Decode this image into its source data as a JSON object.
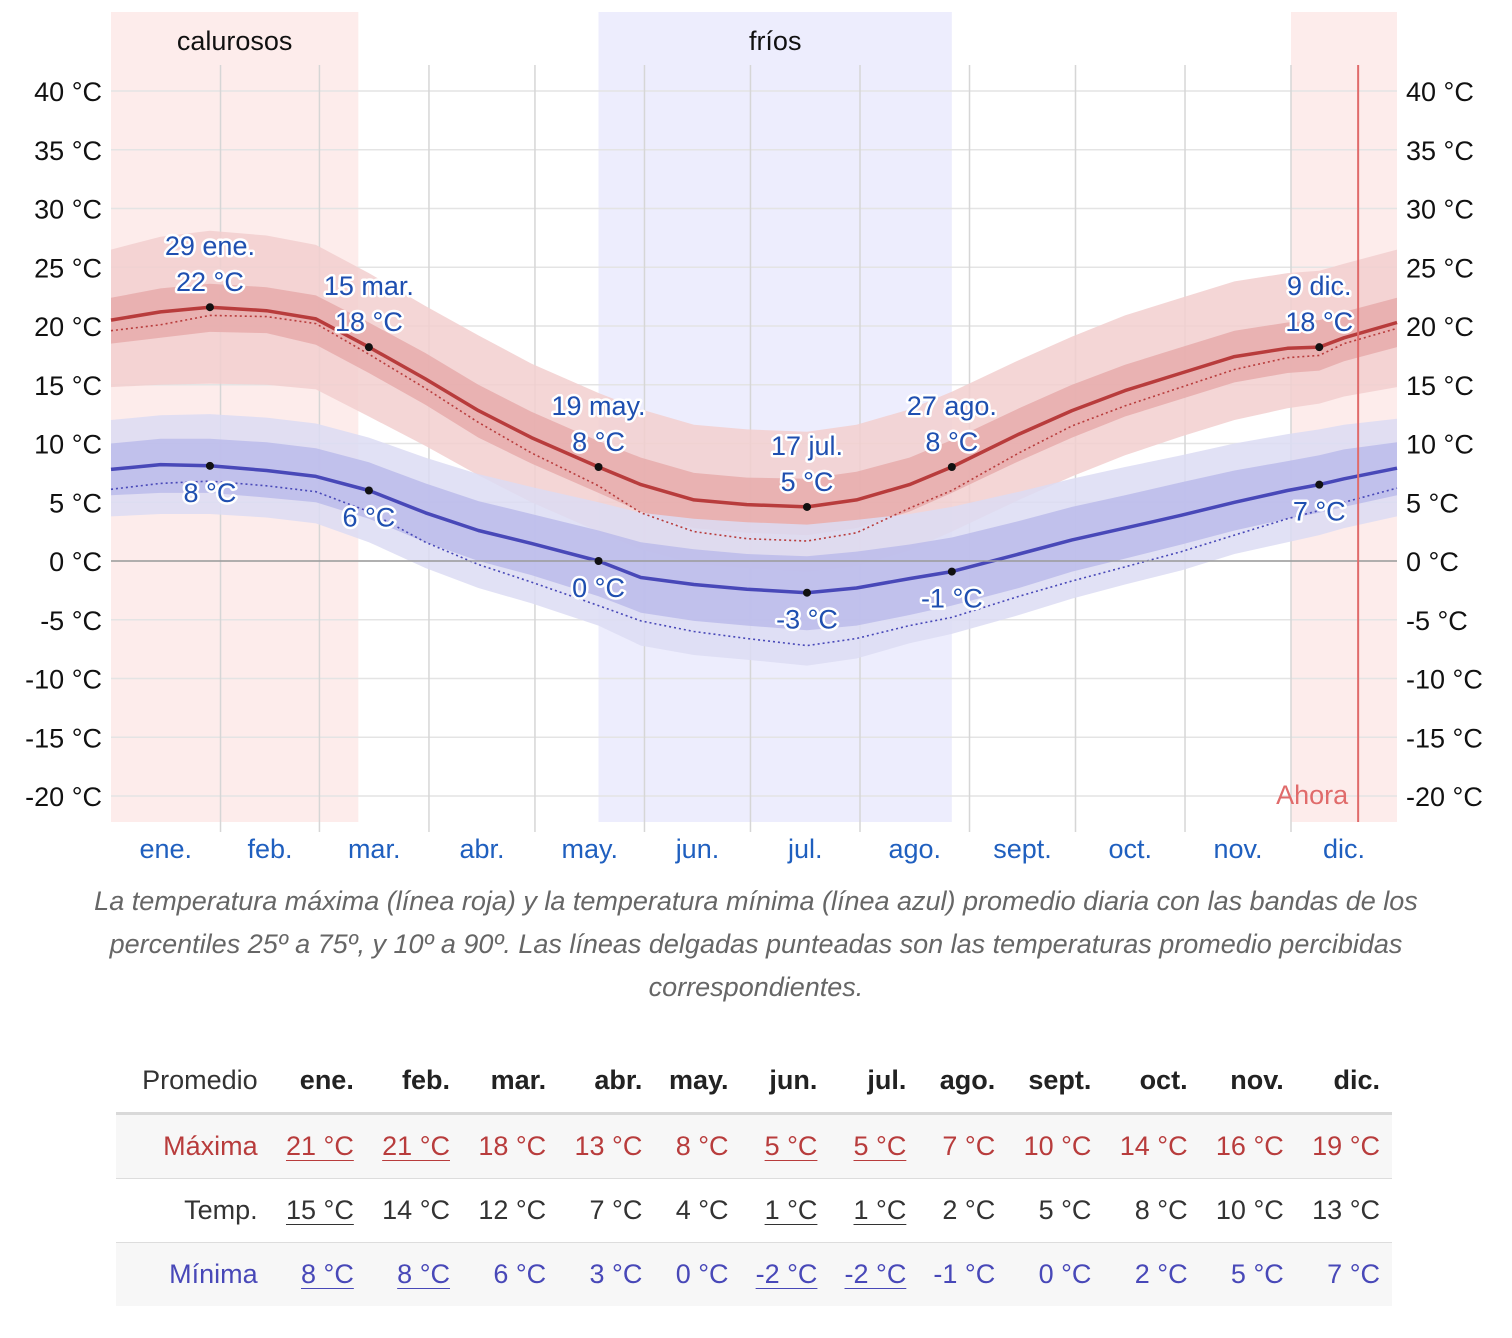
{
  "chart_data": {
    "type": "line",
    "y_unit_label": "°C",
    "ylim": [
      -22,
      43
    ],
    "y_ticks": [
      40,
      35,
      30,
      25,
      20,
      15,
      10,
      5,
      0,
      -5,
      -10,
      -15,
      -20
    ],
    "y_tick_labels": [
      "40 °C",
      "35 °C",
      "30 °C",
      "25 °C",
      "20 °C",
      "15 °C",
      "10 °C",
      "5 °C",
      "0 °C",
      "-5 °C",
      "-10 °C",
      "-15 °C",
      "-20 °C"
    ],
    "month_labels": [
      "ene.",
      "feb.",
      "mar.",
      "abr.",
      "may.",
      "jun.",
      "jul.",
      "ago.",
      "sept.",
      "oct.",
      "nov.",
      "dic."
    ],
    "x_range_days": [
      1,
      365
    ],
    "grid": true,
    "seasons": [
      {
        "label": "calurosos",
        "color": "#fdeceb",
        "ranges": [
          [
            1,
            71
          ],
          [
            335,
            365
          ]
        ]
      },
      {
        "label": "fríos",
        "color": "#ededfd",
        "ranges": [
          [
            139,
            239
          ]
        ]
      }
    ],
    "now": {
      "label": "Ahora",
      "day": 354,
      "color": "#e06b6b"
    },
    "series": [
      {
        "name": "Máxima",
        "color": "#b83c3c",
        "band_outer_color": "#f2cfcf",
        "band_inner_color": "#e6a9a9",
        "x_day": [
          1,
          15,
          29,
          45,
          59,
          74,
          90,
          105,
          120,
          139,
          151,
          166,
          181,
          198,
          212,
          227,
          239,
          258,
          273,
          288,
          304,
          319,
          334,
          343,
          350,
          365
        ],
        "values": [
          20.5,
          21.2,
          21.6,
          21.3,
          20.6,
          18.2,
          15.5,
          12.8,
          10.5,
          8.0,
          6.5,
          5.2,
          4.8,
          4.6,
          5.2,
          6.5,
          8.0,
          10.8,
          12.8,
          14.5,
          16.0,
          17.4,
          18.1,
          18.2,
          19.0,
          20.3
        ],
        "p25": [
          18.5,
          19.0,
          19.5,
          19.4,
          18.4,
          16.0,
          13.3,
          10.5,
          8.3,
          5.8,
          4.2,
          2.8,
          2.4,
          2.2,
          2.8,
          4.2,
          5.8,
          8.5,
          10.5,
          12.3,
          13.8,
          15.2,
          16.0,
          16.2,
          17.0,
          18.2
        ],
        "p75": [
          22.4,
          23.2,
          23.6,
          23.3,
          22.6,
          20.3,
          17.7,
          15.0,
          12.7,
          10.2,
          8.8,
          7.5,
          7.1,
          7.0,
          7.6,
          8.8,
          10.3,
          13.0,
          15.0,
          16.7,
          18.2,
          19.6,
          20.3,
          20.5,
          21.2,
          22.4
        ],
        "p10": [
          14.8,
          15.0,
          15.1,
          15.0,
          14.6,
          12.3,
          9.8,
          7.3,
          5.0,
          2.5,
          1.0,
          -0.2,
          -0.6,
          -0.9,
          -0.4,
          0.9,
          2.5,
          5.2,
          7.2,
          9.0,
          10.6,
          12.0,
          13.0,
          13.4,
          14.0,
          14.8
        ],
        "p90": [
          26.5,
          27.6,
          28.1,
          27.7,
          26.9,
          24.5,
          21.7,
          19.2,
          16.8,
          14.3,
          12.9,
          11.6,
          11.2,
          11.0,
          11.6,
          12.9,
          14.4,
          17.1,
          19.1,
          20.9,
          22.4,
          23.8,
          24.5,
          24.7,
          25.3,
          26.5
        ],
        "feels_like": [
          19.6,
          20.1,
          20.9,
          20.8,
          20.2,
          17.6,
          14.7,
          11.8,
          9.2,
          6.4,
          4.1,
          2.5,
          1.9,
          1.7,
          2.4,
          4.5,
          6.0,
          9.2,
          11.5,
          13.2,
          14.8,
          16.3,
          17.3,
          17.5,
          18.5,
          19.8
        ]
      },
      {
        "name": "Mínima",
        "color": "#4848b8",
        "band_outer_color": "#dcdcf3",
        "band_inner_color": "#b9b9ea",
        "x_day": [
          1,
          15,
          29,
          45,
          59,
          74,
          90,
          105,
          120,
          139,
          151,
          166,
          181,
          198,
          212,
          227,
          239,
          258,
          273,
          288,
          304,
          319,
          334,
          343,
          350,
          365
        ],
        "values": [
          7.8,
          8.2,
          8.1,
          7.7,
          7.2,
          6.0,
          4.1,
          2.6,
          1.5,
          0.0,
          -1.4,
          -2.0,
          -2.4,
          -2.7,
          -2.3,
          -1.5,
          -0.9,
          0.6,
          1.8,
          2.8,
          3.9,
          5.0,
          6.0,
          6.5,
          7.0,
          7.9
        ],
        "p25": [
          5.6,
          5.8,
          5.8,
          5.4,
          5.0,
          3.6,
          1.6,
          0.0,
          -1.2,
          -3.0,
          -4.4,
          -5.1,
          -5.5,
          -5.9,
          -5.5,
          -4.6,
          -3.8,
          -2.3,
          -0.9,
          0.2,
          1.4,
          2.6,
          3.6,
          4.1,
          4.6,
          5.6
        ],
        "p75": [
          10.0,
          10.4,
          10.4,
          10.1,
          9.6,
          8.4,
          6.6,
          5.1,
          4.0,
          2.6,
          1.6,
          1.0,
          0.6,
          0.4,
          0.8,
          1.4,
          2.0,
          3.4,
          4.6,
          5.6,
          6.7,
          7.7,
          8.5,
          9.0,
          9.5,
          10.1
        ],
        "p10": [
          3.8,
          4.0,
          4.0,
          3.7,
          3.2,
          1.6,
          -0.6,
          -2.3,
          -3.6,
          -5.5,
          -7.2,
          -8.0,
          -8.4,
          -8.9,
          -8.3,
          -7.0,
          -6.2,
          -4.6,
          -3.2,
          -2.0,
          -0.8,
          0.6,
          1.6,
          2.2,
          2.8,
          3.8
        ],
        "p90": [
          12.0,
          12.4,
          12.5,
          12.2,
          11.7,
          10.5,
          8.8,
          7.4,
          6.3,
          5.0,
          4.1,
          3.6,
          3.3,
          3.1,
          3.5,
          4.0,
          4.6,
          5.9,
          7.0,
          8.0,
          9.0,
          10.0,
          10.8,
          11.2,
          11.6,
          12.1
        ],
        "feels_like": [
          6.1,
          6.6,
          6.8,
          6.4,
          5.9,
          4.2,
          1.6,
          -0.3,
          -1.8,
          -3.8,
          -5.1,
          -6.0,
          -6.6,
          -7.2,
          -6.6,
          -5.5,
          -4.8,
          -3.0,
          -1.7,
          -0.5,
          0.8,
          2.2,
          3.6,
          4.3,
          5.0,
          6.2
        ]
      }
    ],
    "annotations": [
      {
        "date": "29 ene.",
        "value_label": "22 °C",
        "day": 29,
        "value": 21.6,
        "series": "Máxima",
        "position": "above"
      },
      {
        "date": "15 mar.",
        "value_label": "18 °C",
        "day": 74,
        "value": 18.2,
        "series": "Máxima",
        "position": "above"
      },
      {
        "date": "19 may.",
        "value_label": "8 °C",
        "day": 139,
        "value": 8.0,
        "series": "Máxima",
        "position": "above"
      },
      {
        "date": "17 jul.",
        "value_label": "5 °C",
        "day": 198,
        "value": 4.6,
        "series": "Máxima",
        "position": "above"
      },
      {
        "date": "27 ago.",
        "value_label": "8 °C",
        "day": 239,
        "value": 8.0,
        "series": "Máxima",
        "position": "above"
      },
      {
        "date": "9 dic.",
        "value_label": "18 °C",
        "day": 343,
        "value": 18.2,
        "series": "Máxima",
        "position": "above"
      },
      {
        "date": "",
        "value_label": "8 °C",
        "day": 29,
        "value": 8.1,
        "series": "Mínima",
        "position": "below"
      },
      {
        "date": "",
        "value_label": "6 °C",
        "day": 74,
        "value": 6.0,
        "series": "Mínima",
        "position": "below"
      },
      {
        "date": "",
        "value_label": "0 °C",
        "day": 139,
        "value": 0.0,
        "series": "Mínima",
        "position": "below"
      },
      {
        "date": "",
        "value_label": "-3 °C",
        "day": 198,
        "value": -2.7,
        "series": "Mínima",
        "position": "below"
      },
      {
        "date": "",
        "value_label": "-1 °C",
        "day": 239,
        "value": -0.9,
        "series": "Mínima",
        "position": "below"
      },
      {
        "date": "",
        "value_label": "7 °C",
        "day": 343,
        "value": 6.5,
        "series": "Mínima",
        "position": "below"
      }
    ]
  },
  "caption": "La temperatura máxima (línea roja) y la temperatura mínima (línea azul) promedio diaria con las bandas de los percentiles 25º a 75º, y 10º a 90º. Las líneas delgadas punteadas son las temperaturas promedio percibidas correspondientes.",
  "table": {
    "row_header": "Promedio",
    "months": [
      "ene.",
      "feb.",
      "mar.",
      "abr.",
      "may.",
      "jun.",
      "jul.",
      "ago.",
      "sept.",
      "oct.",
      "nov.",
      "dic."
    ],
    "rows": [
      {
        "label": "Máxima",
        "color": "#b83c3c",
        "values": [
          "21 °C",
          "21 °C",
          "18 °C",
          "13 °C",
          "8 °C",
          "5 °C",
          "5 °C",
          "7 °C",
          "10 °C",
          "14 °C",
          "16 °C",
          "19 °C"
        ],
        "underlined": [
          true,
          true,
          false,
          false,
          false,
          true,
          true,
          false,
          false,
          false,
          false,
          false
        ]
      },
      {
        "label": "Temp.",
        "color": "#333333",
        "values": [
          "15 °C",
          "14 °C",
          "12 °C",
          "7 °C",
          "4 °C",
          "1 °C",
          "1 °C",
          "2 °C",
          "5 °C",
          "8 °C",
          "10 °C",
          "13 °C"
        ],
        "underlined": [
          true,
          false,
          false,
          false,
          false,
          true,
          true,
          false,
          false,
          false,
          false,
          false
        ]
      },
      {
        "label": "Mínima",
        "color": "#4848b8",
        "values": [
          "8 °C",
          "8 °C",
          "6 °C",
          "3 °C",
          "0 °C",
          "-2 °C",
          "-2 °C",
          "-1 °C",
          "0 °C",
          "2 °C",
          "5 °C",
          "7 °C"
        ],
        "underlined": [
          true,
          true,
          false,
          false,
          false,
          true,
          true,
          false,
          false,
          false,
          false,
          false
        ]
      }
    ]
  }
}
